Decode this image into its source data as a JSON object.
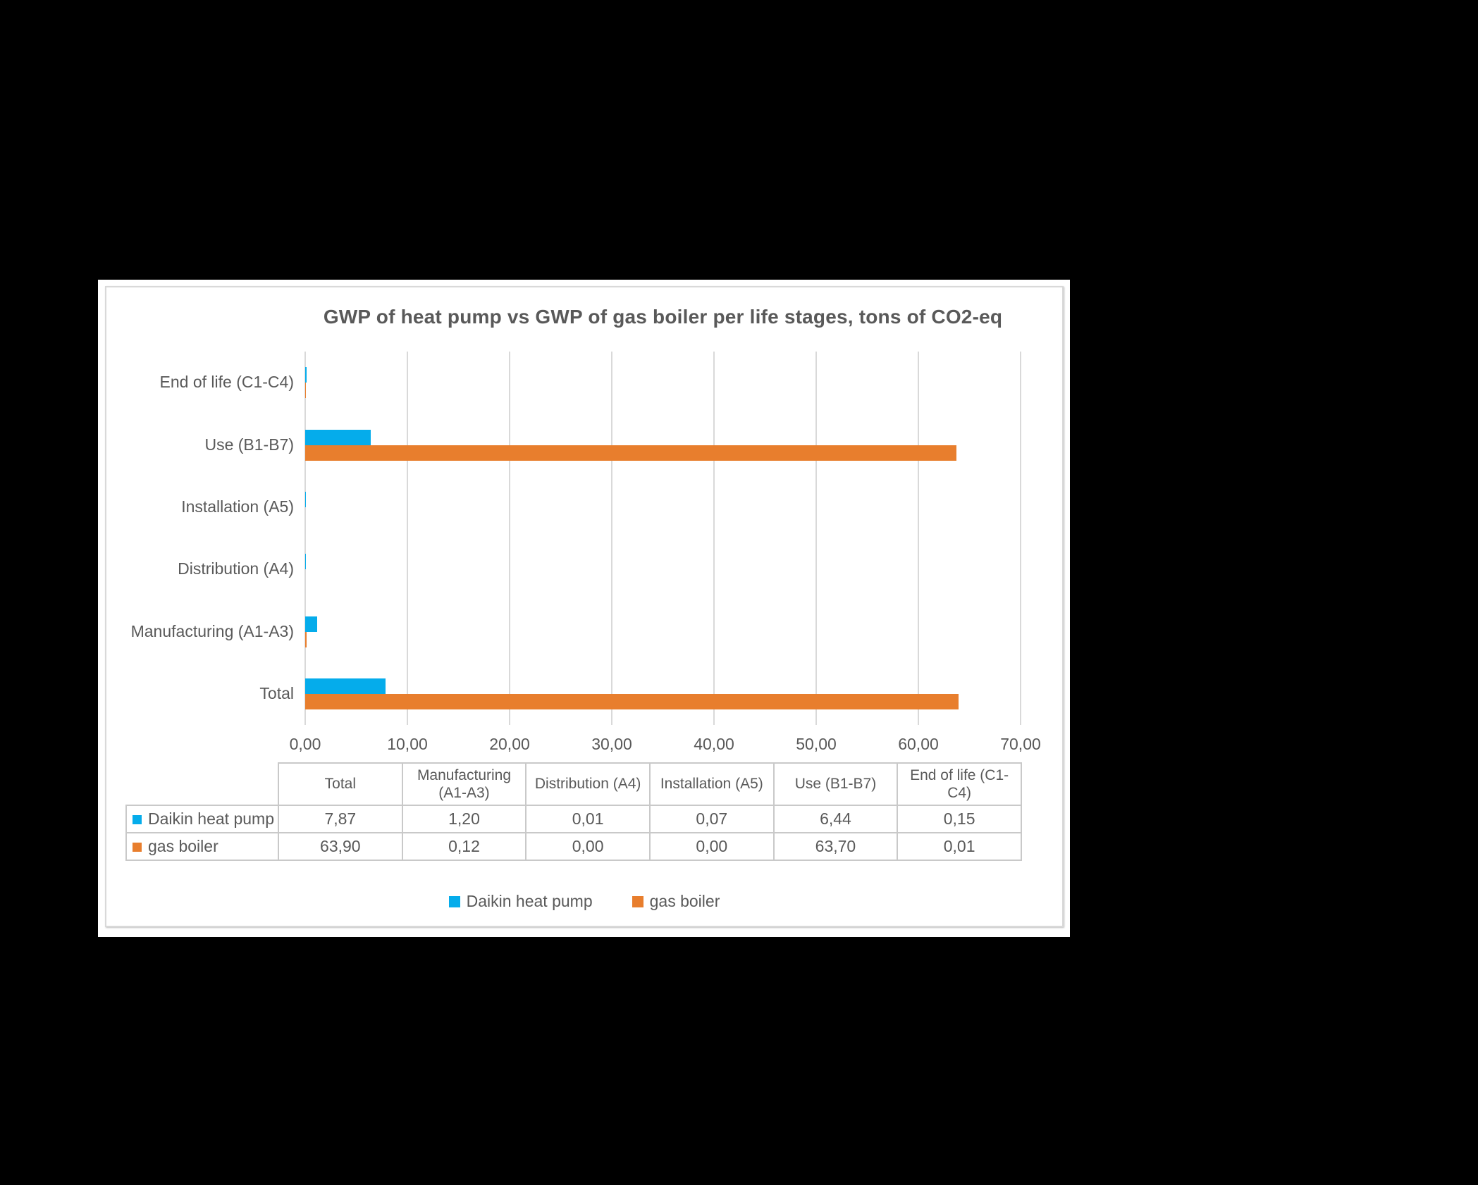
{
  "page": {
    "background": "#000000",
    "sheet_background": "#ffffff"
  },
  "chart": {
    "title": "GWP of heat pump vs GWP of gas boiler per life stages, tons of CO2-eq",
    "text_color": "#595959",
    "grid_color": "#D9D9D9",
    "frame_border_color": "#D9D9D9"
  },
  "chart_data": {
    "type": "bar",
    "orientation": "horizontal",
    "title": "GWP of heat pump vs GWP of gas boiler per life stages, tons of CO2-eq",
    "categories": [
      "End of life (C1-C4)",
      "Use (B1-B7)",
      "Installation (A5)",
      "Distribution (A4)",
      "Manufacturing (A1-A3)",
      "Total"
    ],
    "series": [
      {
        "name": "Daikin heat pump",
        "color": "#05ACEB",
        "values": [
          0.15,
          6.44,
          0.07,
          0.01,
          1.2,
          7.87
        ]
      },
      {
        "name": "gas boiler",
        "color": "#E87E2D",
        "values": [
          0.01,
          63.7,
          0.0,
          0.0,
          0.12,
          63.9
        ]
      }
    ],
    "x_axis": {
      "min": 0,
      "max": 70,
      "step": 10,
      "tick_labels": [
        "0,00",
        "10,00",
        "20,00",
        "30,00",
        "40,00",
        "50,00",
        "60,00",
        "70,00"
      ]
    },
    "grid": true,
    "legend_position": "bottom"
  },
  "table": {
    "column_headers": [
      "Total",
      "Manufacturing (A1-A3)",
      "Distribution (A4)",
      "Installation (A5)",
      "Use (B1-B7)",
      "End of life (C1-C4)"
    ],
    "rows": [
      {
        "label": "Daikin heat pump",
        "key_color": "#05ACEB",
        "values": [
          "7,87",
          "1,20",
          "0,01",
          "0,07",
          "6,44",
          "0,15"
        ]
      },
      {
        "label": "gas boiler",
        "key_color": "#E87E2D",
        "values": [
          "63,90",
          "0,12",
          "0,00",
          "0,00",
          "63,70",
          "0,01"
        ]
      }
    ]
  },
  "legend": {
    "items": [
      {
        "label": "Daikin heat pump",
        "color": "#05ACEB"
      },
      {
        "label": "gas boiler",
        "color": "#E87E2D"
      }
    ]
  }
}
